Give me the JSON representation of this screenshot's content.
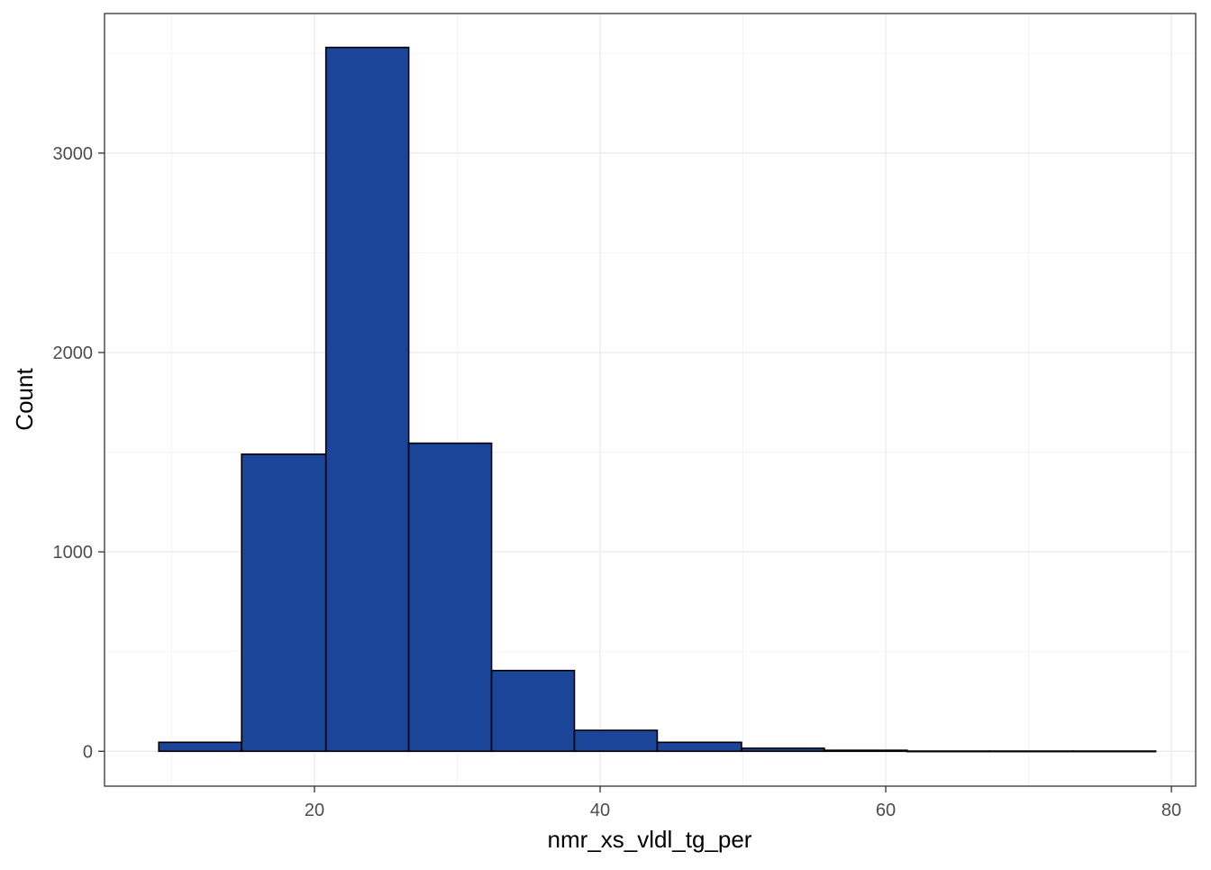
{
  "chart_data": {
    "type": "bar",
    "subtype": "histogram",
    "title": "",
    "xlabel": "nmr_xs_vldl_tg_per",
    "ylabel": "Count",
    "xlim": [
      5.3,
      81.7
    ],
    "ylim": [
      -175,
      3700
    ],
    "xticks": [
      20,
      40,
      60,
      80
    ],
    "yticks": [
      0,
      1000,
      2000,
      3000
    ],
    "grid": true,
    "legend": "none",
    "colors": {
      "bar_fill": "#1A4599",
      "bar_outline": "#000000",
      "panel_border": "#333333",
      "grid": "#ebebeb"
    },
    "bins": [
      {
        "x0": 9.1,
        "x1": 14.9,
        "count": 45
      },
      {
        "x0": 14.9,
        "x1": 20.8,
        "count": 1490
      },
      {
        "x0": 20.8,
        "x1": 26.6,
        "count": 3530
      },
      {
        "x0": 26.6,
        "x1": 32.4,
        "count": 1545
      },
      {
        "x0": 32.4,
        "x1": 38.2,
        "count": 405
      },
      {
        "x0": 38.2,
        "x1": 44.0,
        "count": 105
      },
      {
        "x0": 44.0,
        "x1": 49.9,
        "count": 45
      },
      {
        "x0": 49.9,
        "x1": 55.7,
        "count": 15
      },
      {
        "x0": 55.7,
        "x1": 61.5,
        "count": 5
      },
      {
        "x0": 61.5,
        "x1": 67.3,
        "count": 1
      },
      {
        "x0": 67.3,
        "x1": 73.1,
        "count": 1
      },
      {
        "x0": 73.1,
        "x1": 78.9,
        "count": 1
      }
    ]
  }
}
